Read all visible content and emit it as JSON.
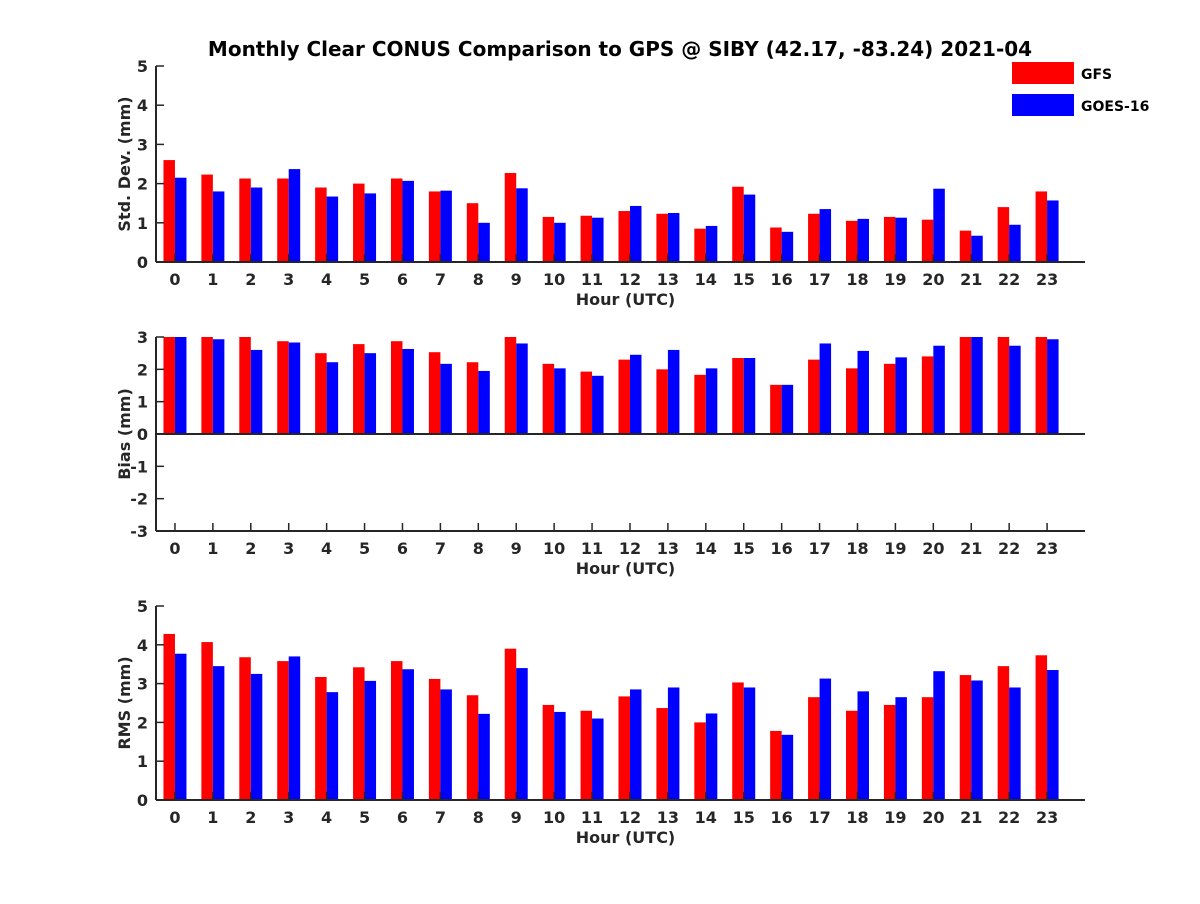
{
  "chart_data": [
    {
      "type": "bar",
      "title": "Monthly Clear CONUS Comparison to GPS @ SIBY (42.17, -83.24) 2021-04",
      "categories": [
        "0",
        "1",
        "2",
        "3",
        "4",
        "5",
        "6",
        "7",
        "8",
        "9",
        "10",
        "11",
        "12",
        "13",
        "14",
        "15",
        "16",
        "17",
        "18",
        "19",
        "20",
        "21",
        "22",
        "23"
      ],
      "xlabel": "Hour (UTC)",
      "ylabel": "Std. Dev. (mm)",
      "ylim": [
        0,
        5
      ],
      "yticks": [
        "0",
        "1",
        "2",
        "3",
        "4",
        "5"
      ],
      "series": [
        {
          "name": "GFS",
          "values": [
            2.6,
            2.23,
            2.13,
            2.13,
            1.9,
            2.0,
            2.13,
            1.8,
            1.5,
            2.27,
            1.15,
            1.18,
            1.3,
            1.23,
            0.85,
            1.92,
            0.88,
            1.23,
            1.05,
            1.15,
            1.08,
            0.8,
            1.4,
            1.8
          ]
        },
        {
          "name": "GOES-16",
          "values": [
            2.15,
            1.8,
            1.9,
            2.37,
            1.67,
            1.75,
            2.07,
            1.82,
            1.0,
            1.88,
            1.0,
            1.13,
            1.43,
            1.25,
            0.92,
            1.72,
            0.77,
            1.35,
            1.1,
            1.13,
            1.87,
            0.67,
            0.95,
            1.57
          ]
        }
      ]
    },
    {
      "type": "bar",
      "categories": [
        "0",
        "1",
        "2",
        "3",
        "4",
        "5",
        "6",
        "7",
        "8",
        "9",
        "10",
        "11",
        "12",
        "13",
        "14",
        "15",
        "16",
        "17",
        "18",
        "19",
        "20",
        "21",
        "22",
        "23"
      ],
      "xlabel": "Hour (UTC)",
      "ylabel": "Bias (mm)",
      "ylim": [
        -3,
        3
      ],
      "yticks": [
        "-3",
        "-2",
        "-1",
        "0",
        "1",
        "2",
        "3"
      ],
      "series": [
        {
          "name": "GFS",
          "values": [
            3.0,
            3.0,
            3.0,
            2.87,
            2.5,
            2.78,
            2.87,
            2.53,
            2.22,
            3.0,
            2.17,
            1.93,
            2.3,
            2.0,
            1.83,
            2.35,
            1.52,
            2.3,
            2.03,
            2.17,
            2.4,
            3.0,
            3.0,
            3.0
          ]
        },
        {
          "name": "GOES-16",
          "values": [
            3.0,
            2.93,
            2.6,
            2.83,
            2.22,
            2.5,
            2.63,
            2.17,
            1.95,
            2.8,
            2.03,
            1.8,
            2.45,
            2.6,
            2.03,
            2.35,
            1.52,
            2.8,
            2.57,
            2.37,
            2.73,
            3.0,
            2.73,
            2.93
          ]
        }
      ]
    },
    {
      "type": "bar",
      "categories": [
        "0",
        "1",
        "2",
        "3",
        "4",
        "5",
        "6",
        "7",
        "8",
        "9",
        "10",
        "11",
        "12",
        "13",
        "14",
        "15",
        "16",
        "17",
        "18",
        "19",
        "20",
        "21",
        "22",
        "23"
      ],
      "xlabel": "Hour (UTC)",
      "ylabel": "RMS (mm)",
      "ylim": [
        0,
        5
      ],
      "yticks": [
        "0",
        "1",
        "2",
        "3",
        "4",
        "5"
      ],
      "series": [
        {
          "name": "GFS",
          "values": [
            4.28,
            4.07,
            3.68,
            3.58,
            3.17,
            3.42,
            3.58,
            3.12,
            2.7,
            3.9,
            2.45,
            2.3,
            2.67,
            2.37,
            2.0,
            3.03,
            1.78,
            2.65,
            2.3,
            2.45,
            2.65,
            3.22,
            3.45,
            3.73
          ]
        },
        {
          "name": "GOES-16",
          "values": [
            3.77,
            3.45,
            3.25,
            3.7,
            2.78,
            3.07,
            3.37,
            2.85,
            2.22,
            3.4,
            2.27,
            2.1,
            2.85,
            2.9,
            2.23,
            2.9,
            1.68,
            3.13,
            2.8,
            2.65,
            3.32,
            3.08,
            2.9,
            3.35
          ]
        }
      ]
    }
  ],
  "legend": {
    "placement": "top-right",
    "entries": [
      {
        "label": "GFS",
        "color": "#ff0000"
      },
      {
        "label": "GOES-16",
        "color": "#0000ff"
      }
    ]
  },
  "colors": {
    "gfs": "#ff0000",
    "goes": "#0000ff",
    "axis": "#262626"
  }
}
